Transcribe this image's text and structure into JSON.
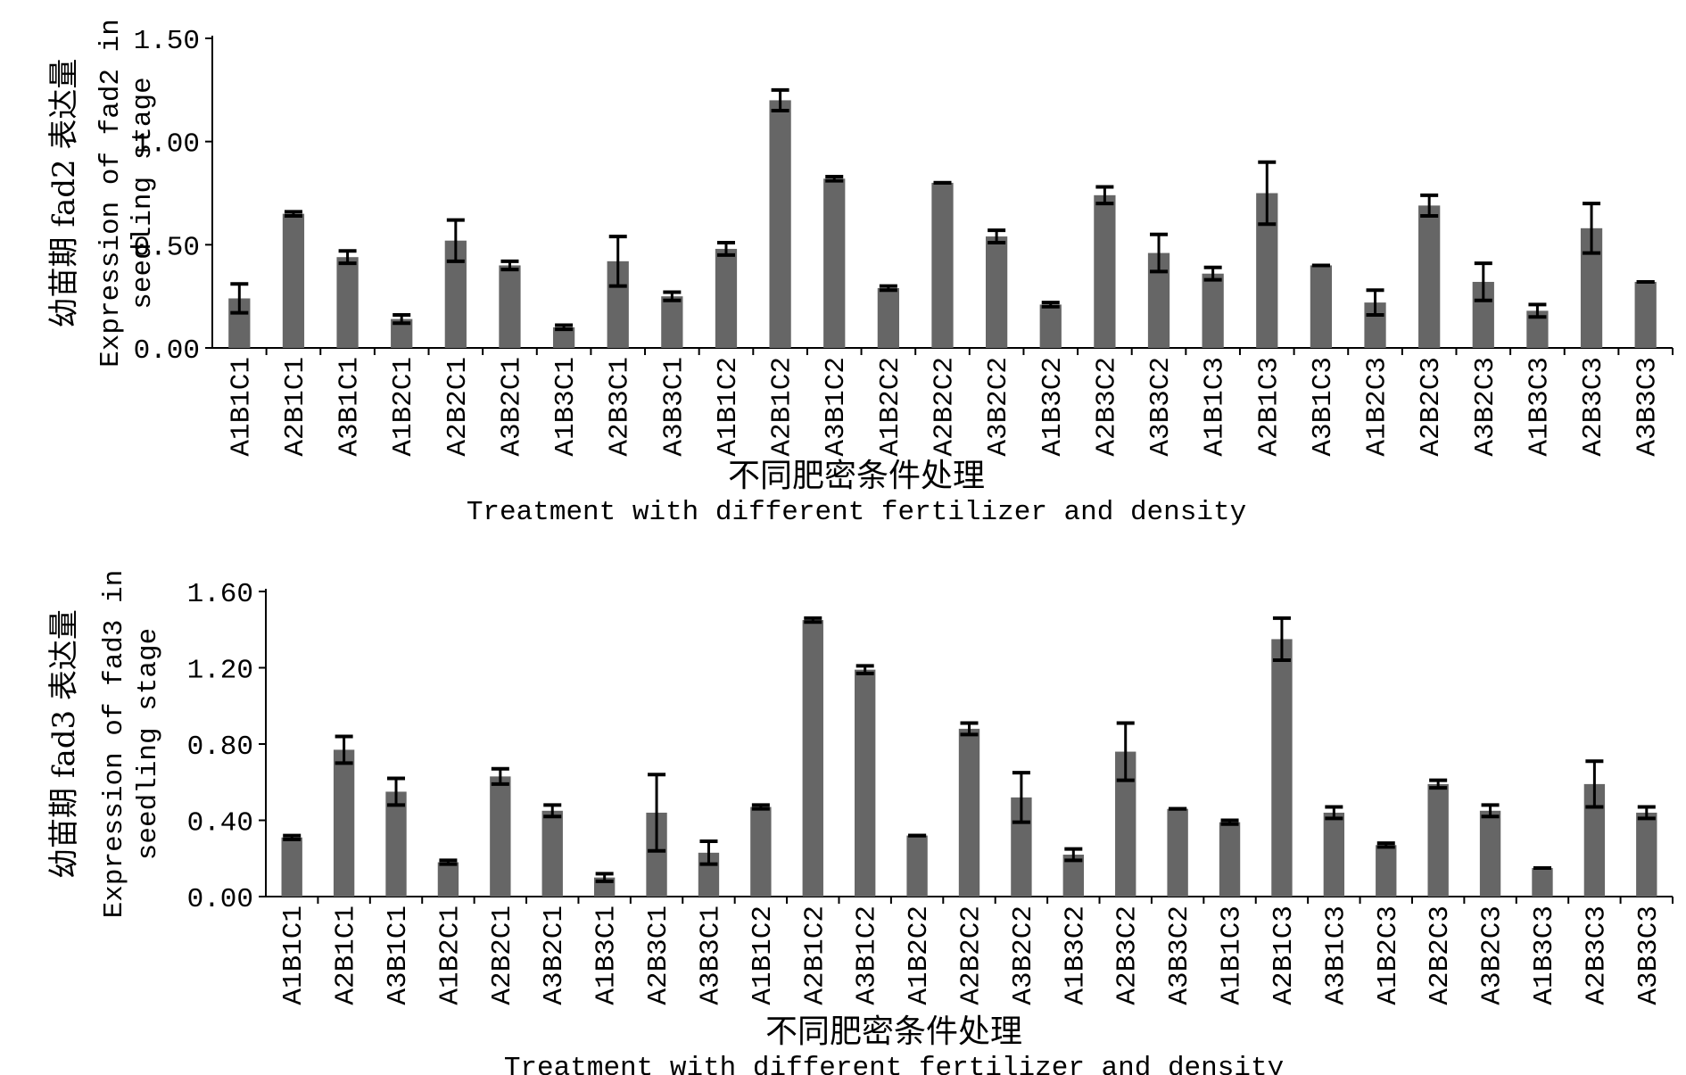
{
  "chart_data": [
    {
      "type": "bar",
      "ylabel_cn": "幼苗期 fad2 表达量",
      "ylabel_en_1": "Expression of fad2 in",
      "ylabel_en_2": "seedling stage",
      "xlabel_cn": "不同肥密条件处理",
      "xlabel_en": "Treatment with different fertilizer and density",
      "ylim": [
        0,
        1.5
      ],
      "yticks": [
        "0.00",
        "0.50",
        "1.00",
        "1.50"
      ],
      "categories": [
        "A1B1C1",
        "A2B1C1",
        "A3B1C1",
        "A1B2C1",
        "A2B2C1",
        "A3B2C1",
        "A1B3C1",
        "A2B3C1",
        "A3B3C1",
        "A1B1C2",
        "A2B1C2",
        "A3B1C2",
        "A1B2C2",
        "A2B2C2",
        "A3B2C2",
        "A1B3C2",
        "A2B3C2",
        "A3B3C2",
        "A1B1C3",
        "A2B1C3",
        "A3B1C3",
        "A1B2C3",
        "A2B2C3",
        "A3B2C3",
        "A1B3C3",
        "A2B3C3",
        "A3B3C3"
      ],
      "values": [
        0.24,
        0.65,
        0.44,
        0.14,
        0.52,
        0.4,
        0.1,
        0.42,
        0.25,
        0.48,
        1.2,
        0.82,
        0.29,
        0.8,
        0.54,
        0.21,
        0.74,
        0.46,
        0.36,
        0.75,
        0.4,
        0.22,
        0.69,
        0.32,
        0.18,
        0.58,
        0.32
      ],
      "errors": [
        0.07,
        0.01,
        0.03,
        0.02,
        0.1,
        0.02,
        0.01,
        0.12,
        0.02,
        0.03,
        0.05,
        0.01,
        0.01,
        0.0,
        0.03,
        0.01,
        0.04,
        0.09,
        0.03,
        0.15,
        0.0,
        0.06,
        0.05,
        0.09,
        0.03,
        0.12,
        0.0
      ],
      "bar_color": "#666666"
    },
    {
      "type": "bar",
      "ylabel_cn": "幼苗期 fad3 表达量",
      "ylabel_en_1": "Expression of fad3 in",
      "ylabel_en_2": "seedling stage",
      "xlabel_cn": "不同肥密条件处理",
      "xlabel_en": "Treatment with different fertilizer and density",
      "ylim": [
        0,
        1.6
      ],
      "yticks": [
        "0.00",
        "0.40",
        "0.80",
        "1.20",
        "1.60"
      ],
      "categories": [
        "A1B1C1",
        "A2B1C1",
        "A3B1C1",
        "A1B2C1",
        "A2B2C1",
        "A3B2C1",
        "A1B3C1",
        "A2B3C1",
        "A3B3C1",
        "A1B1C2",
        "A2B1C2",
        "A3B1C2",
        "A1B2C2",
        "A2B2C2",
        "A3B2C2",
        "A1B3C2",
        "A2B3C2",
        "A3B3C2",
        "A1B1C3",
        "A2B1C3",
        "A3B1C3",
        "A1B2C3",
        "A2B2C3",
        "A3B2C3",
        "A1B3C3",
        "A2B3C3",
        "A3B3C3"
      ],
      "values": [
        0.31,
        0.77,
        0.55,
        0.18,
        0.63,
        0.45,
        0.1,
        0.44,
        0.23,
        0.47,
        1.45,
        1.19,
        0.32,
        0.88,
        0.52,
        0.22,
        0.76,
        0.46,
        0.39,
        1.35,
        0.44,
        0.27,
        0.59,
        0.45,
        0.15,
        0.59,
        0.44
      ],
      "errors": [
        0.01,
        0.07,
        0.07,
        0.01,
        0.04,
        0.03,
        0.02,
        0.2,
        0.06,
        0.01,
        0.01,
        0.02,
        0.0,
        0.03,
        0.13,
        0.03,
        0.15,
        0.0,
        0.01,
        0.11,
        0.03,
        0.01,
        0.02,
        0.03,
        0.0,
        0.12,
        0.03
      ],
      "bar_color": "#666666"
    }
  ]
}
